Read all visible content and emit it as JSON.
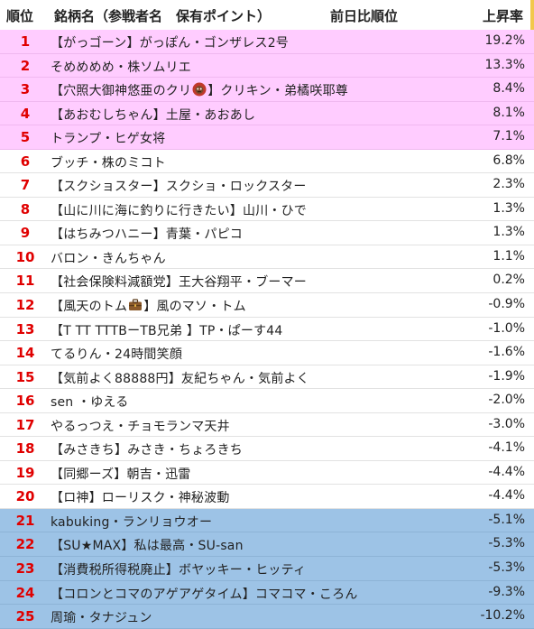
{
  "header": {
    "rank": "順位",
    "name": "銘柄名（参戦者名　保有ポイント）",
    "prev": "前日比順位",
    "rate": "上昇率"
  },
  "rows": [
    {
      "rank": "1",
      "name": "【がっゴーン】がっぽん・ゴンザレス2号",
      "rate": "19.2%",
      "band": "pink"
    },
    {
      "rank": "2",
      "name": "そめめめめ・株ソムリエ",
      "rate": "13.3%",
      "band": "pink"
    },
    {
      "rank": "3",
      "name_a": "【穴照大御神悠亜のクリ",
      "name_b": "】クリキン・弟橘咲耶尊",
      "icon": "gorilla-emoji-icon",
      "rate": "8.4%",
      "band": "pink"
    },
    {
      "rank": "4",
      "name": "【あおむしちゃん】土屋・あおあし",
      "rate": "8.1%",
      "band": "pink"
    },
    {
      "rank": "5",
      "name": "トランプ・ヒゲ女将",
      "rate": "7.1%",
      "band": "pink"
    },
    {
      "rank": "6",
      "name": "ブッチ・株のミコト",
      "rate": "6.8%",
      "band": "none"
    },
    {
      "rank": "7",
      "name": "【スクショスター】スクショ・ロックスター",
      "rate": "2.3%",
      "band": "none"
    },
    {
      "rank": "8",
      "name": "【山に川に海に釣りに行きたい】山川・ひで",
      "rate": "1.3%",
      "band": "none"
    },
    {
      "rank": "9",
      "name": "【はちみつハニー】青葉・パピコ",
      "rate": "1.3%",
      "band": "none"
    },
    {
      "rank": "10",
      "name": "バロン・きんちゃん",
      "rate": "1.1%",
      "band": "none"
    },
    {
      "rank": "11",
      "name": "【社会保険料減額党】王大谷翔平・ブーマー",
      "rate": "0.2%",
      "band": "none"
    },
    {
      "rank": "12",
      "name_a": "【風天のトム",
      "name_b": "】風のマソ・トム",
      "icon": "briefcase-emoji-icon",
      "rate": "-0.9%",
      "band": "none"
    },
    {
      "rank": "13",
      "name": "【T  TT TTTBーTB兄弟 】TP・ぱーす44",
      "rate": "-1.0%",
      "band": "none"
    },
    {
      "rank": "14",
      "name": "てるりん・24時間笑顔",
      "rate": "-1.6%",
      "band": "none"
    },
    {
      "rank": "15",
      "name": "【気前よく88888円】友紀ちゃん・気前よく",
      "rate": "-1.9%",
      "band": "none"
    },
    {
      "rank": "16",
      "name": "sen ・ゆえる",
      "rate": "-2.0%",
      "band": "none"
    },
    {
      "rank": "17",
      "name": "やるっつえ・チョモランマ天井",
      "rate": "-3.0%",
      "band": "none"
    },
    {
      "rank": "18",
      "name": "【みさきち】みさき・ちょろきち",
      "rate": "-4.1%",
      "band": "none"
    },
    {
      "rank": "19",
      "name": "【同郷ーズ】朝吉・迅雷",
      "rate": "-4.4%",
      "band": "none"
    },
    {
      "rank": "20",
      "name": "【ロ神】ローリスク・神秘波動",
      "rate": "-4.4%",
      "band": "none"
    },
    {
      "rank": "21",
      "name": "kabuking・ランリョウオー",
      "rate": "-5.1%",
      "band": "blue"
    },
    {
      "rank": "22",
      "name": "【SU★MAX】私は最高・SU-san",
      "rate": "-5.3%",
      "band": "blue"
    },
    {
      "rank": "23",
      "name": "【消費税所得税廃止】ボヤッキー・ヒッティ",
      "rate": "-5.3%",
      "band": "blue"
    },
    {
      "rank": "24",
      "name": "【コロンとコマのアゲアゲタイム】コマコマ・ころん",
      "rate": "-9.3%",
      "band": "blue"
    },
    {
      "rank": "25",
      "name": "周瑜・タナジュン",
      "rate": "-10.2%",
      "band": "blue"
    }
  ],
  "colors": {
    "rank_text": "#e00000",
    "top_band": "#ffccff",
    "bottom_band": "#9dc3e6"
  }
}
